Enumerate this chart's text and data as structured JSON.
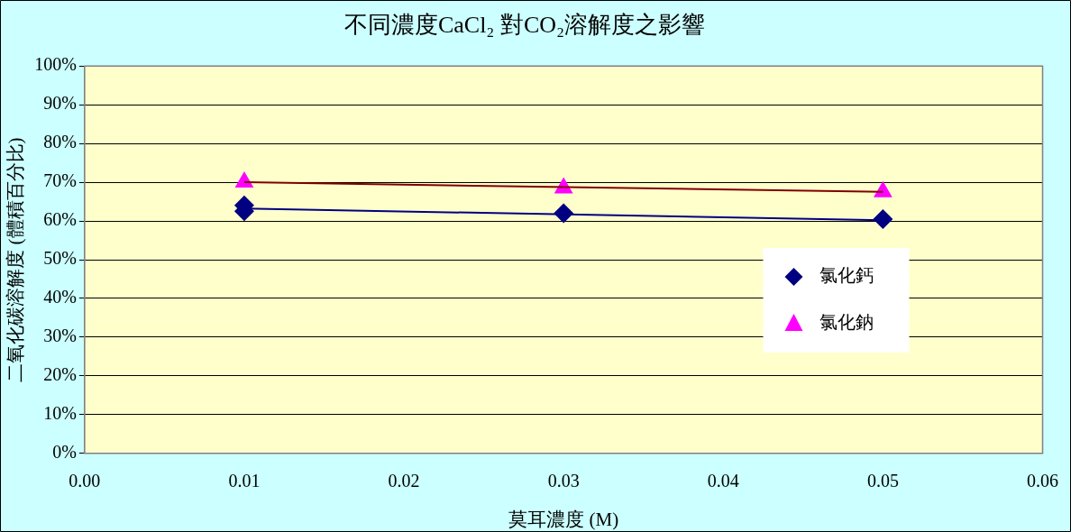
{
  "chart_data": {
    "type": "scatter",
    "title": "不同濃度CaCl₂ 對CO₂溶解度之影響",
    "xlabel": "莫耳濃度 (M)",
    "ylabel": "二氧化碳溶解度 (體積百分比)",
    "series": [
      {
        "name": "氯化鈣",
        "type": "scatter",
        "marker": "diamond",
        "color": "#000080",
        "x": [
          0.01,
          0.01,
          0.03,
          0.05
        ],
        "values": [
          64,
          62.5,
          62,
          60.5
        ]
      },
      {
        "name": "氯化鈉",
        "type": "scatter",
        "marker": "triangle",
        "color": "#ff00ff",
        "x": [
          0.01,
          0.03,
          0.05
        ],
        "values": [
          70,
          68.5,
          67.5
        ]
      },
      {
        "type": "line",
        "marker": "none",
        "line_style": "solid",
        "color": "#000080",
        "x": [
          0.01,
          0.05
        ],
        "values": [
          63.2,
          60.2
        ]
      },
      {
        "type": "line",
        "marker": "none",
        "line_style": "solid",
        "color": "#800000",
        "x": [
          0.01,
          0.05
        ],
        "values": [
          70,
          67.5
        ]
      }
    ],
    "xlim": [
      0,
      0.06
    ],
    "xticks": [
      {
        "value": 0,
        "label": "0.00"
      },
      {
        "value": 0.01,
        "label": "0.01"
      },
      {
        "value": 0.02,
        "label": "0.02"
      },
      {
        "value": 0.03,
        "label": "0.03"
      },
      {
        "value": 0.04,
        "label": "0.04"
      },
      {
        "value": 0.05,
        "label": "0.05"
      },
      {
        "value": 0.06,
        "label": "0.06"
      }
    ],
    "ylim": [
      0,
      100
    ],
    "yticks": [
      {
        "value": 0,
        "label": "0%"
      },
      {
        "value": 10,
        "label": "10%"
      },
      {
        "value": 20,
        "label": "20%"
      },
      {
        "value": 30,
        "label": "30%"
      },
      {
        "value": 40,
        "label": "40%"
      },
      {
        "value": 50,
        "label": "50%"
      },
      {
        "value": 60,
        "label": "60%"
      },
      {
        "value": 70,
        "label": "70%"
      },
      {
        "value": 80,
        "label": "80%"
      },
      {
        "value": 90,
        "label": "90%"
      },
      {
        "value": 100,
        "label": "100%"
      }
    ],
    "grid": "y",
    "legend": "right"
  }
}
